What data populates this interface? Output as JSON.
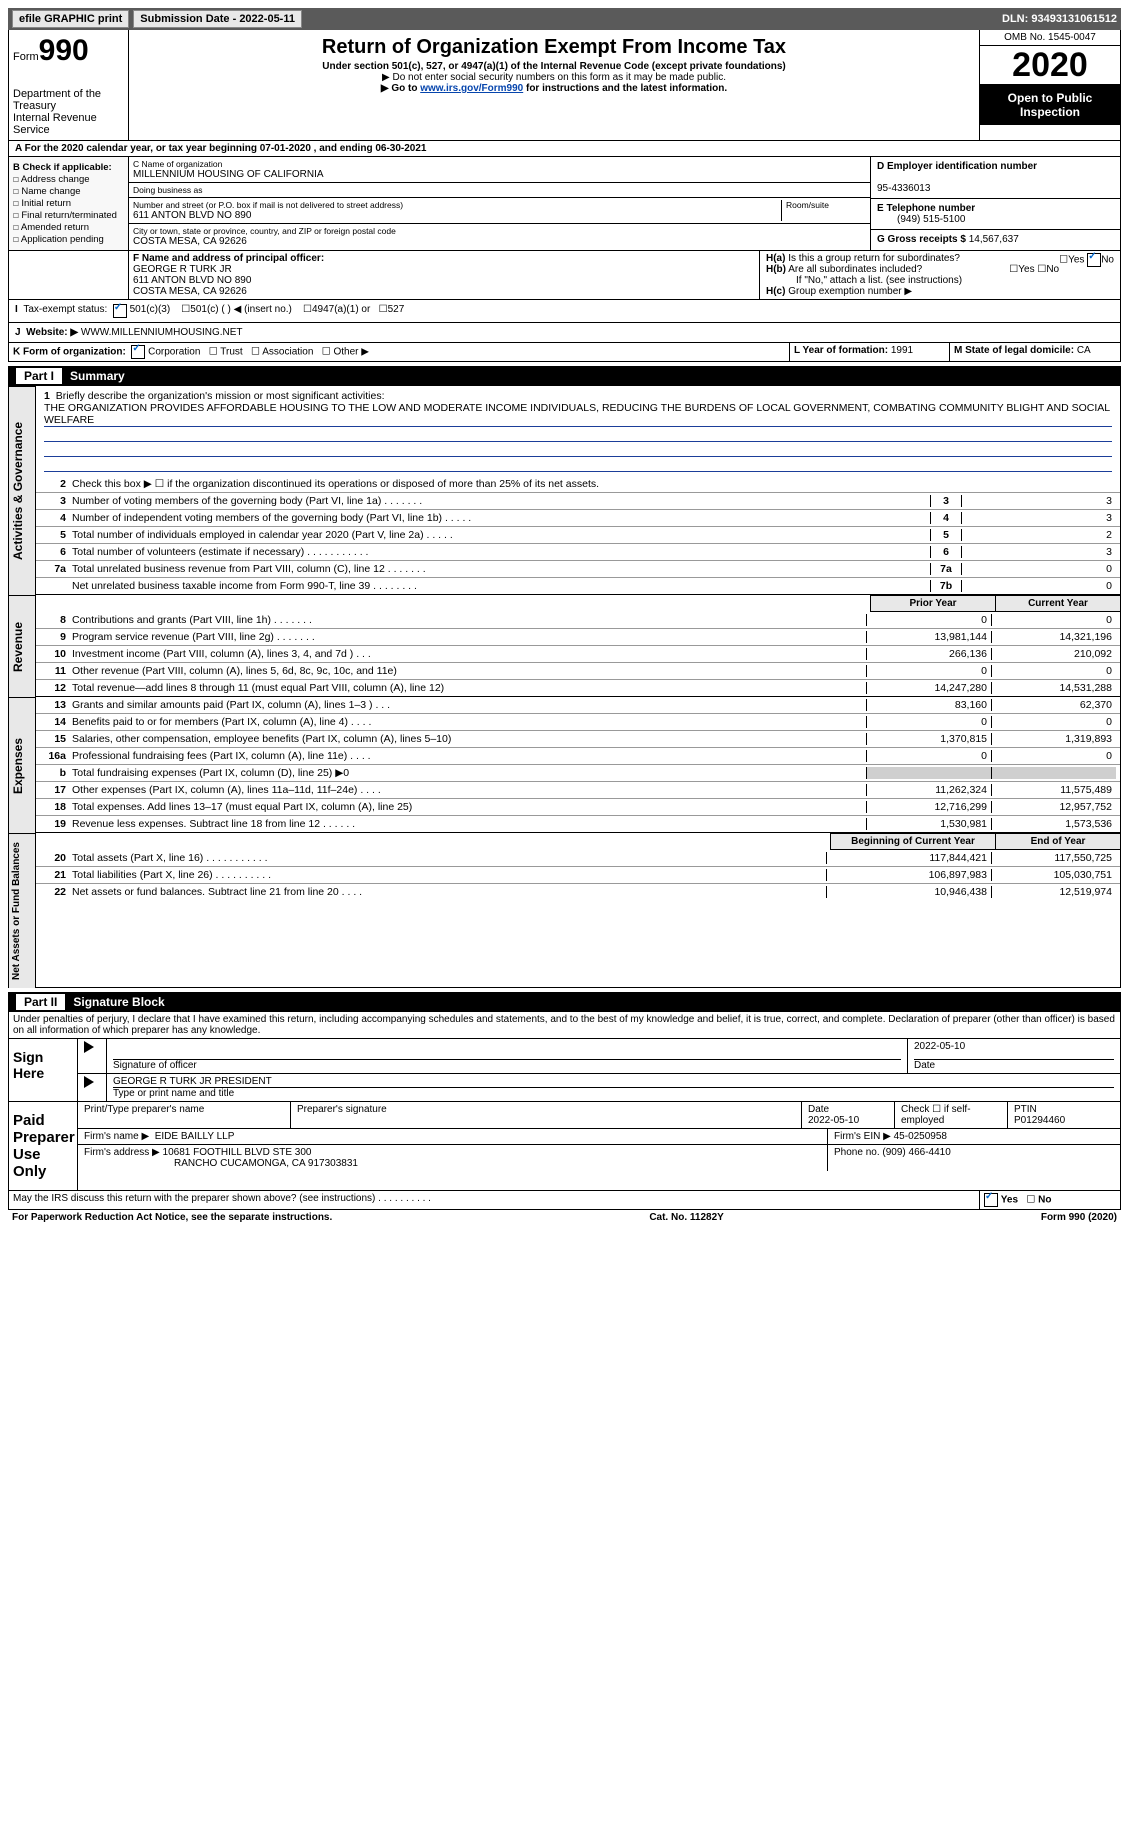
{
  "topbar": {
    "efile": "efile GRAPHIC print",
    "submission": "Submission Date - 2022-05-11",
    "dln": "DLN: 93493131061512"
  },
  "header": {
    "form_label": "Form",
    "form_num": "990",
    "dept1": "Department of the Treasury",
    "dept2": "Internal Revenue Service",
    "title": "Return of Organization Exempt From Income Tax",
    "sub1": "Under section 501(c), 527, or 4947(a)(1) of the Internal Revenue Code (except private foundations)",
    "sub2": "▶ Do not enter social security numbers on this form as it may be made public.",
    "sub3_pre": "▶ Go to ",
    "sub3_link": "www.irs.gov/Form990",
    "sub3_post": " for instructions and the latest information.",
    "omb": "OMB No. 1545-0047",
    "year": "2020",
    "open": "Open to Public Inspection"
  },
  "line_a": "For the 2020 calendar year, or tax year beginning 07-01-2020   , and ending 06-30-2021",
  "check_b": {
    "label": "B Check if applicable:",
    "items": [
      "Address change",
      "Name change",
      "Initial return",
      "Final return/terminated",
      "Amended return",
      "Application pending"
    ]
  },
  "block_c": {
    "label": "C Name of organization",
    "name": "MILLENNIUM HOUSING OF CALIFORNIA",
    "dba_label": "Doing business as",
    "addr_label": "Number and street (or P.O. box if mail is not delivered to street address)",
    "room_label": "Room/suite",
    "addr": "611 ANTON BLVD NO 890",
    "city_label": "City or town, state or province, country, and ZIP or foreign postal code",
    "city": "COSTA MESA, CA  92626"
  },
  "block_d": {
    "label": "D Employer identification number",
    "ein": "95-4336013"
  },
  "block_e": {
    "label": "E Telephone number",
    "phone": "(949) 515-5100"
  },
  "block_g": {
    "label": "G Gross receipts $",
    "val": "14,567,637"
  },
  "block_f": {
    "label": "F  Name and address of principal officer:",
    "name": "GEORGE R TURK JR",
    "addr1": "611 ANTON BLVD NO 890",
    "addr2": "COSTA MESA, CA  92626"
  },
  "block_h": {
    "ha": "Is this a group return for subordinates?",
    "hb": "Are all subordinates included?",
    "hb_note": "If \"No,\" attach a list. (see instructions)",
    "hc": "Group exemption number ▶",
    "yes": "Yes",
    "no": "No"
  },
  "line_i": {
    "label": "Tax-exempt status:",
    "opts": [
      "501(c)(3)",
      "501(c) (  ) ◀ (insert no.)",
      "4947(a)(1) or",
      "527"
    ]
  },
  "line_j": {
    "label": "J",
    "field": "Website: ▶",
    "val": "WWW.MILLENNIUMHOUSING.NET"
  },
  "line_k": {
    "label": "K Form of organization:",
    "opts": [
      "Corporation",
      "Trust",
      "Association",
      "Other ▶"
    ]
  },
  "line_l": {
    "label": "L Year of formation:",
    "val": "1991"
  },
  "line_m": {
    "label": "M State of legal domicile:",
    "val": "CA"
  },
  "part1": {
    "head": "Part I",
    "title": "Summary"
  },
  "mission": {
    "num": "1",
    "label": "Briefly describe the organization's mission or most significant activities:",
    "text": "THE ORGANIZATION PROVIDES AFFORDABLE HOUSING TO THE LOW AND MODERATE INCOME INDIVIDUALS, REDUCING THE BURDENS OF LOCAL GOVERNMENT, COMBATING COMMUNITY BLIGHT AND SOCIAL WELFARE"
  },
  "vert": {
    "gov": "Activities & Governance",
    "rev": "Revenue",
    "exp": "Expenses",
    "net": "Net Assets or Fund Balances"
  },
  "gov_lines": [
    {
      "n": "2",
      "d": "Check this box ▶ ☐  if the organization discontinued its operations or disposed of more than 25% of its net assets."
    },
    {
      "n": "3",
      "d": "Number of voting members of the governing body (Part VI, line 1a)   .    .    .    .    .    .    .",
      "b": "3",
      "v": "3"
    },
    {
      "n": "4",
      "d": "Number of independent voting members of the governing body (Part VI, line 1b)   .    .    .    .    .",
      "b": "4",
      "v": "3"
    },
    {
      "n": "5",
      "d": "Total number of individuals employed in calendar year 2020 (Part V, line 2a)   .    .    .    .    .",
      "b": "5",
      "v": "2"
    },
    {
      "n": "6",
      "d": "Total number of volunteers (estimate if necessary)   .    .    .    .    .    .    .    .    .    .    .",
      "b": "6",
      "v": "3"
    },
    {
      "n": "7a",
      "d": "Total unrelated business revenue from Part VIII, column (C), line 12   .    .    .    .    .    .    .",
      "b": "7a",
      "v": "0"
    },
    {
      "n": "",
      "d": "Net unrelated business taxable income from Form 990-T, line 39   .    .    .    .    .    .    .    .",
      "b": "7b",
      "v": "0"
    }
  ],
  "col_heads": {
    "prior": "Prior Year",
    "current": "Current Year",
    "boy": "Beginning of Current Year",
    "eoy": "End of Year"
  },
  "rev_lines": [
    {
      "n": "8",
      "d": "Contributions and grants (Part VIII, line 1h)   .    .    .    .    .    .    .",
      "p": "0",
      "c": "0"
    },
    {
      "n": "9",
      "d": "Program service revenue (Part VIII, line 2g)   .    .    .    .    .    .    .",
      "p": "13,981,144",
      "c": "14,321,196"
    },
    {
      "n": "10",
      "d": "Investment income (Part VIII, column (A), lines 3, 4, and 7d )   .    .    .",
      "p": "266,136",
      "c": "210,092"
    },
    {
      "n": "11",
      "d": "Other revenue (Part VIII, column (A), lines 5, 6d, 8c, 9c, 10c, and 11e)",
      "p": "0",
      "c": "0"
    },
    {
      "n": "12",
      "d": "Total revenue—add lines 8 through 11 (must equal Part VIII, column (A), line 12)",
      "p": "14,247,280",
      "c": "14,531,288"
    }
  ],
  "exp_lines": [
    {
      "n": "13",
      "d": "Grants and similar amounts paid (Part IX, column (A), lines 1–3 )   .    .    .",
      "p": "83,160",
      "c": "62,370"
    },
    {
      "n": "14",
      "d": "Benefits paid to or for members (Part IX, column (A), line 4)   .    .    .    .",
      "p": "0",
      "c": "0"
    },
    {
      "n": "15",
      "d": "Salaries, other compensation, employee benefits (Part IX, column (A), lines 5–10)",
      "p": "1,370,815",
      "c": "1,319,893"
    },
    {
      "n": "16a",
      "d": "Professional fundraising fees (Part IX, column (A), line 11e)   .    .    .    .",
      "p": "0",
      "c": "0"
    },
    {
      "n": "b",
      "d": "Total fundraising expenses (Part IX, column (D), line 25) ▶0",
      "p": "shade",
      "c": "shade"
    },
    {
      "n": "17",
      "d": "Other expenses (Part IX, column (A), lines 11a–11d, 11f–24e)   .    .    .    .",
      "p": "11,262,324",
      "c": "11,575,489"
    },
    {
      "n": "18",
      "d": "Total expenses. Add lines 13–17 (must equal Part IX, column (A), line 25)",
      "p": "12,716,299",
      "c": "12,957,752"
    },
    {
      "n": "19",
      "d": "Revenue less expenses. Subtract line 18 from line 12   .    .    .    .    .    .",
      "p": "1,530,981",
      "c": "1,573,536"
    }
  ],
  "net_lines": [
    {
      "n": "20",
      "d": "Total assets (Part X, line 16)   .    .    .    .    .    .    .    .    .    .    .",
      "p": "117,844,421",
      "c": "117,550,725"
    },
    {
      "n": "21",
      "d": "Total liabilities (Part X, line 26)   .    .    .    .    .    .    .    .    .    .",
      "p": "106,897,983",
      "c": "105,030,751"
    },
    {
      "n": "22",
      "d": "Net assets or fund balances. Subtract line 21 from line 20   .    .    .    .",
      "p": "10,946,438",
      "c": "12,519,974"
    }
  ],
  "part2": {
    "head": "Part II",
    "title": "Signature Block"
  },
  "penalty": "Under penalties of perjury, I declare that I have examined this return, including accompanying schedules and statements, and to the best of my knowledge and belief, it is true, correct, and complete. Declaration of preparer (other than officer) is based on all information of which preparer has any knowledge.",
  "sign": {
    "label": "Sign Here",
    "sig_label": "Signature of officer",
    "date_label": "Date",
    "date": "2022-05-10",
    "name": "GEORGE R TURK JR  PRESIDENT",
    "name_label": "Type or print name and title"
  },
  "paid": {
    "label": "Paid Preparer Use Only",
    "pt_label": "Print/Type preparer's name",
    "sig_label": "Preparer's signature",
    "date_label": "Date",
    "date": "2022-05-10",
    "check_label": "Check ☐ if self-employed",
    "ptin_label": "PTIN",
    "ptin": "P01294460",
    "firm_name_label": "Firm's name    ▶",
    "firm_name": "EIDE BAILLY LLP",
    "firm_ein_label": "Firm's EIN ▶",
    "firm_ein": "45-0250958",
    "firm_addr_label": "Firm's address ▶",
    "firm_addr1": "10681 FOOTHILL BLVD STE 300",
    "firm_addr2": "RANCHO CUCAMONGA, CA  917303831",
    "phone_label": "Phone no.",
    "phone": "(909) 466-4410"
  },
  "discuss": "May the IRS discuss this return with the preparer shown above? (see instructions)   .    .    .    .    .    .    .    .    .    .",
  "footer": {
    "left": "For Paperwork Reduction Act Notice, see the separate instructions.",
    "mid": "Cat. No. 11282Y",
    "right": "Form 990 (2020)"
  }
}
